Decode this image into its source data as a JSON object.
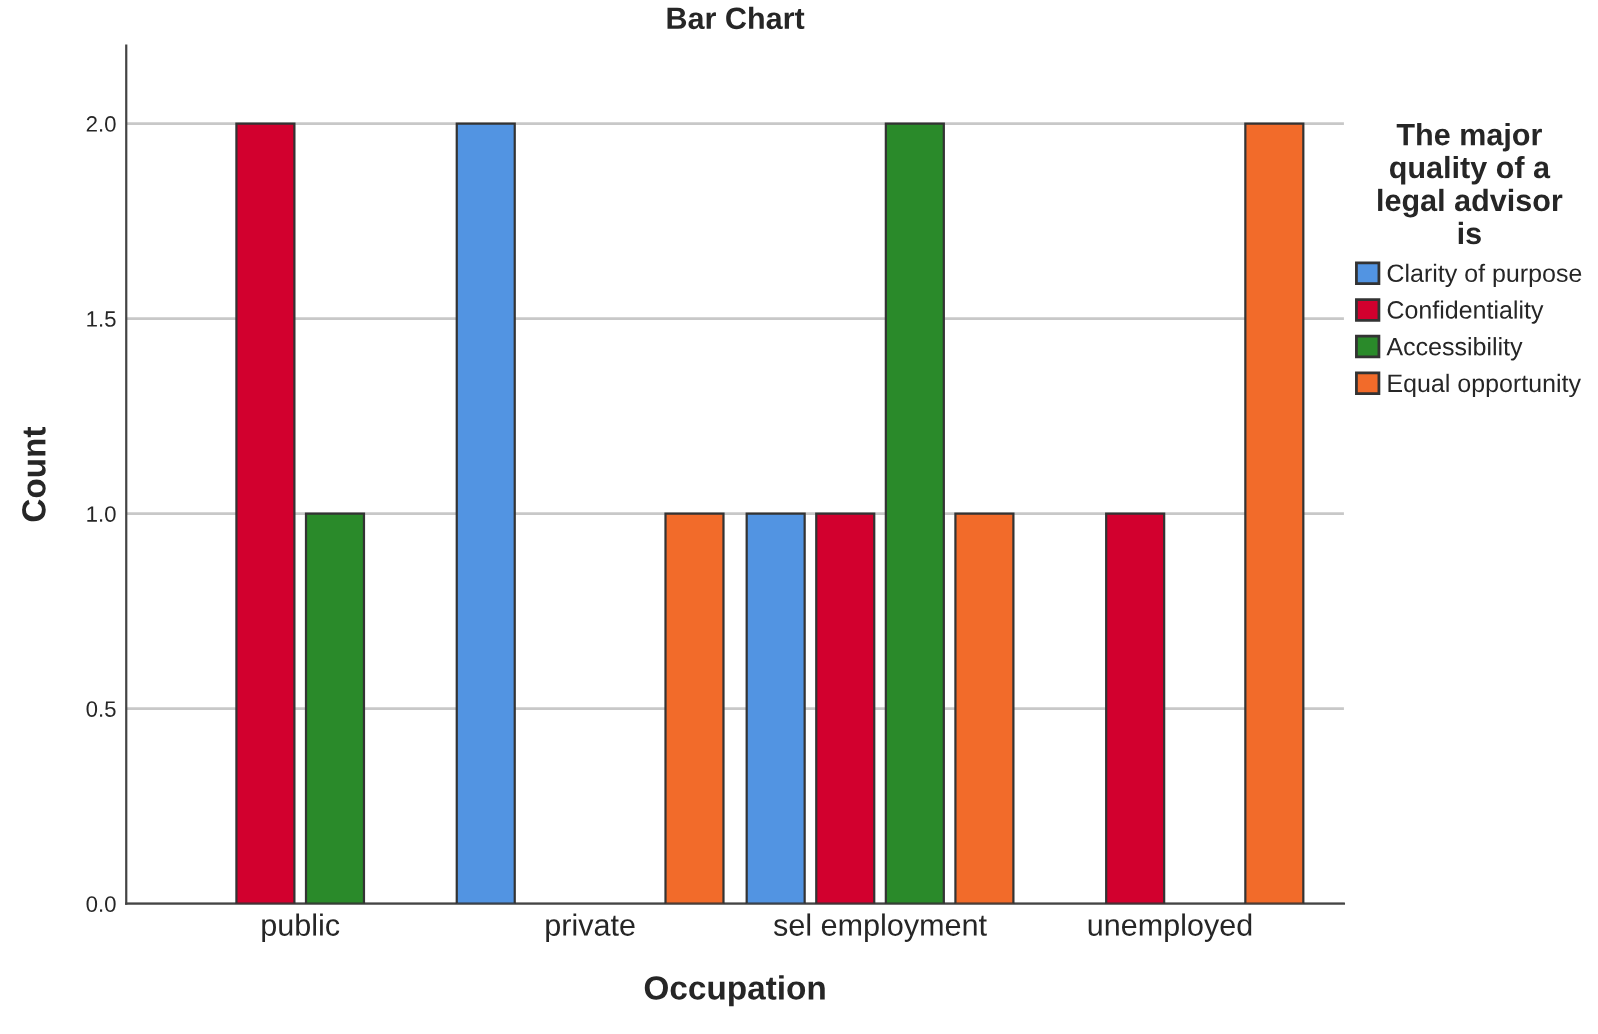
{
  "chart_data": {
    "type": "bar",
    "title": "Bar Chart",
    "xlabel": "Occupation",
    "ylabel": "Count",
    "legend_title": "The major quality of a legal advisor is",
    "categories": [
      "public",
      "private",
      "sel employment",
      "unemployed"
    ],
    "series": [
      {
        "name": "Clarity of purpose",
        "color": "#5294e2",
        "values": [
          null,
          2,
          1,
          null
        ]
      },
      {
        "name": "Confidentiality",
        "color": "#d2002e",
        "values": [
          2,
          null,
          1,
          1
        ]
      },
      {
        "name": "Accessibility",
        "color": "#2a8a2a",
        "values": [
          1,
          null,
          2,
          null
        ]
      },
      {
        "name": "Equal opportunity",
        "color": "#f26b2a",
        "values": [
          null,
          1,
          1,
          2
        ]
      }
    ],
    "ylim": [
      0,
      2.2
    ],
    "yticks": [
      {
        "value": 0,
        "label": "0.0"
      },
      {
        "value": 0.5,
        "label": "0.5"
      },
      {
        "value": 1,
        "label": "1.0"
      },
      {
        "value": 1.5,
        "label": "1.5"
      },
      {
        "value": 2,
        "label": "2.0"
      }
    ],
    "grid": "y",
    "legend": "right"
  }
}
